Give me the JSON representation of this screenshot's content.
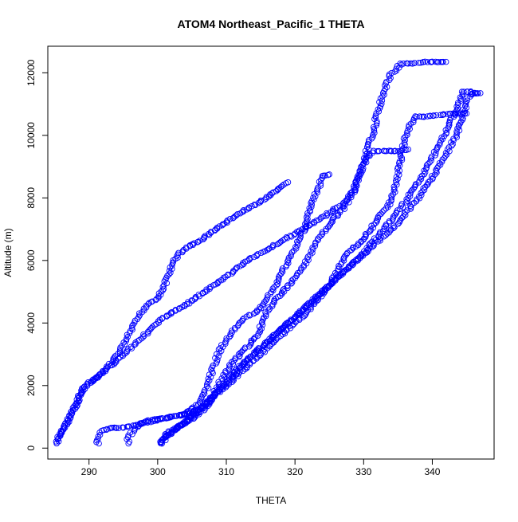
{
  "chart_data": {
    "type": "scatter",
    "title": "ATOM4 Northeast_Pacific_1 THETA",
    "xlabel": "THETA",
    "ylabel": "Altitude (m)",
    "xlim": [
      284.0,
      349.0
    ],
    "ylim": [
      -350,
      12850
    ],
    "xticks": [
      290,
      300,
      310,
      320,
      330,
      340
    ],
    "yticks": [
      0,
      2000,
      4000,
      6000,
      8000,
      10000,
      12000
    ],
    "grid": false,
    "legend": "none",
    "marker": "open-circle",
    "point_color": "#0000ff",
    "axis_color": "#000000",
    "series": [
      {
        "profile": [
          [
            285.3,
            150
          ],
          [
            285.6,
            350
          ],
          [
            286.2,
            600
          ],
          [
            287.3,
            1000
          ],
          [
            288.3,
            1500
          ],
          [
            289.0,
            1900
          ],
          [
            290.5,
            2150
          ],
          [
            292.0,
            2400
          ],
          [
            293.5,
            2800
          ],
          [
            294.5,
            3100
          ],
          [
            295.5,
            3500
          ],
          [
            296.5,
            3900
          ],
          [
            297.5,
            4300
          ],
          [
            298.5,
            4600
          ],
          [
            300.0,
            4800
          ],
          [
            300.8,
            5100
          ],
          [
            301.5,
            5500
          ],
          [
            302.2,
            5900
          ],
          [
            303.0,
            6200
          ],
          [
            304.5,
            6450
          ],
          [
            306.0,
            6600
          ],
          [
            307.5,
            6850
          ],
          [
            309.5,
            7150
          ],
          [
            311.5,
            7450
          ],
          [
            313.5,
            7700
          ],
          [
            315.5,
            7950
          ],
          [
            317.5,
            8250
          ],
          [
            319.0,
            8500
          ]
        ]
      },
      {
        "profile": [
          [
            285.3,
            150
          ],
          [
            285.7,
            400
          ],
          [
            286.5,
            700
          ],
          [
            287.5,
            1100
          ],
          [
            288.8,
            1700
          ],
          [
            290.0,
            2100
          ],
          [
            291.5,
            2300
          ],
          [
            293.0,
            2600
          ],
          [
            294.5,
            2900
          ],
          [
            296.0,
            3200
          ],
          [
            297.5,
            3500
          ],
          [
            299.0,
            3800
          ],
          [
            300.5,
            4100
          ],
          [
            301.8,
            4300
          ],
          [
            303.5,
            4500
          ],
          [
            305.5,
            4800
          ],
          [
            307.5,
            5100
          ],
          [
            309.5,
            5400
          ],
          [
            311.5,
            5750
          ],
          [
            313.5,
            6050
          ],
          [
            315.5,
            6300
          ],
          [
            317.5,
            6550
          ],
          [
            319.5,
            6800
          ],
          [
            321.5,
            7050
          ],
          [
            323.5,
            7300
          ],
          [
            325.5,
            7600
          ],
          [
            327.0,
            7800
          ],
          [
            328.5,
            8200
          ],
          [
            329.5,
            8800
          ],
          [
            330.5,
            9500
          ],
          [
            331.5,
            10200
          ],
          [
            332.0,
            10700
          ],
          [
            332.8,
            11300
          ],
          [
            333.8,
            11900
          ],
          [
            335.5,
            12300
          ],
          [
            337.0,
            12300
          ],
          [
            339.0,
            12350
          ],
          [
            341.0,
            12350
          ],
          [
            342.0,
            12350
          ]
        ]
      },
      {
        "profile": [
          [
            291.2,
            150
          ],
          [
            291.4,
            300
          ],
          [
            291.8,
            550
          ],
          [
            293.0,
            650
          ],
          [
            294.5,
            650
          ],
          [
            296.0,
            700
          ],
          [
            298.0,
            800
          ],
          [
            300.0,
            900
          ],
          [
            302.0,
            1000
          ],
          [
            304.0,
            1100
          ],
          [
            306.0,
            1400
          ],
          [
            307.0,
            1800
          ],
          [
            307.8,
            2400
          ],
          [
            308.8,
            3000
          ],
          [
            309.5,
            3300
          ],
          [
            310.5,
            3600
          ],
          [
            311.5,
            3900
          ],
          [
            313.0,
            4200
          ],
          [
            314.5,
            4400
          ],
          [
            315.5,
            4600
          ],
          [
            316.5,
            5000
          ],
          [
            317.5,
            5300
          ],
          [
            318.5,
            5800
          ],
          [
            319.5,
            6200
          ],
          [
            320.5,
            6600
          ],
          [
            321.3,
            7000
          ],
          [
            322.0,
            7500
          ],
          [
            322.8,
            8000
          ],
          [
            323.5,
            8400
          ],
          [
            324.0,
            8700
          ],
          [
            325.0,
            8750
          ]
        ]
      },
      {
        "profile": [
          [
            295.6,
            150
          ],
          [
            295.8,
            350
          ],
          [
            296.5,
            600
          ],
          [
            297.5,
            800
          ],
          [
            299.0,
            900
          ],
          [
            300.5,
            950
          ],
          [
            302.0,
            1000
          ],
          [
            303.5,
            1050
          ],
          [
            305.0,
            1150
          ],
          [
            306.5,
            1300
          ],
          [
            307.8,
            1600
          ],
          [
            308.8,
            2000
          ],
          [
            309.8,
            2400
          ],
          [
            310.8,
            2700
          ],
          [
            312.0,
            3000
          ],
          [
            313.3,
            3300
          ],
          [
            314.5,
            3600
          ],
          [
            315.3,
            4000
          ],
          [
            316.0,
            4400
          ],
          [
            317.0,
            4700
          ],
          [
            318.2,
            5000
          ],
          [
            319.5,
            5300
          ],
          [
            320.5,
            5600
          ],
          [
            321.5,
            5900
          ],
          [
            322.5,
            6300
          ],
          [
            323.5,
            6700
          ],
          [
            324.5,
            7000
          ],
          [
            325.5,
            7300
          ],
          [
            326.5,
            7500
          ],
          [
            327.5,
            7800
          ],
          [
            328.5,
            8200
          ],
          [
            329.2,
            8600
          ],
          [
            329.8,
            9000
          ],
          [
            330.5,
            9300
          ],
          [
            331.5,
            9500
          ],
          [
            333.0,
            9500
          ],
          [
            335.0,
            9500
          ],
          [
            336.5,
            9550
          ]
        ]
      },
      {
        "profile": [
          [
            300.5,
            150
          ],
          [
            300.8,
            300
          ],
          [
            301.5,
            500
          ],
          [
            302.5,
            650
          ],
          [
            304.0,
            800
          ],
          [
            305.5,
            1000
          ],
          [
            307.0,
            1300
          ],
          [
            308.5,
            1700
          ],
          [
            310.0,
            2000
          ],
          [
            311.5,
            2300
          ],
          [
            313.0,
            2600
          ],
          [
            314.5,
            2900
          ],
          [
            316.0,
            3200
          ],
          [
            317.5,
            3500
          ],
          [
            319.0,
            3800
          ],
          [
            320.5,
            4100
          ],
          [
            322.0,
            4400
          ],
          [
            323.5,
            4800
          ],
          [
            325.0,
            5200
          ],
          [
            326.0,
            5600
          ],
          [
            327.0,
            6000
          ],
          [
            328.0,
            6300
          ],
          [
            329.0,
            6500
          ],
          [
            330.0,
            6700
          ],
          [
            331.0,
            7000
          ],
          [
            332.0,
            7300
          ],
          [
            333.0,
            7600
          ],
          [
            334.0,
            7900
          ],
          [
            334.5,
            8300
          ],
          [
            335.0,
            8800
          ],
          [
            335.5,
            9400
          ],
          [
            336.0,
            9900
          ],
          [
            336.5,
            10200
          ],
          [
            337.5,
            10600
          ],
          [
            339.0,
            10600
          ],
          [
            341.0,
            10650
          ],
          [
            343.0,
            10700
          ],
          [
            345.0,
            10700
          ]
        ]
      },
      {
        "profile": [
          [
            300.6,
            150
          ],
          [
            301.0,
            300
          ],
          [
            302.0,
            500
          ],
          [
            303.5,
            750
          ],
          [
            305.0,
            1000
          ],
          [
            306.5,
            1300
          ],
          [
            308.0,
            1600
          ],
          [
            309.5,
            2000
          ],
          [
            311.0,
            2400
          ],
          [
            312.5,
            2700
          ],
          [
            314.0,
            3000
          ],
          [
            315.5,
            3300
          ],
          [
            317.0,
            3600
          ],
          [
            318.5,
            3900
          ],
          [
            320.0,
            4200
          ],
          [
            321.5,
            4500
          ],
          [
            323.0,
            4800
          ],
          [
            324.5,
            5100
          ],
          [
            326.0,
            5400
          ],
          [
            327.5,
            5700
          ],
          [
            329.0,
            6000
          ],
          [
            330.5,
            6300
          ],
          [
            332.0,
            6600
          ],
          [
            333.5,
            6900
          ],
          [
            335.0,
            7200
          ],
          [
            336.5,
            7600
          ],
          [
            338.0,
            8000
          ],
          [
            339.5,
            8500
          ],
          [
            341.0,
            9000
          ],
          [
            342.3,
            9500
          ],
          [
            343.5,
            10000
          ],
          [
            344.2,
            10500
          ],
          [
            345.0,
            11000
          ],
          [
            345.5,
            11300
          ],
          [
            346.5,
            11350
          ],
          [
            347.0,
            11350
          ]
        ]
      },
      {
        "profile": [
          [
            300.7,
            150
          ],
          [
            301.2,
            350
          ],
          [
            302.5,
            600
          ],
          [
            304.0,
            850
          ],
          [
            305.5,
            1100
          ],
          [
            307.0,
            1400
          ],
          [
            308.5,
            1800
          ],
          [
            310.0,
            2100
          ],
          [
            311.5,
            2400
          ],
          [
            313.0,
            2800
          ],
          [
            314.5,
            3100
          ],
          [
            316.0,
            3400
          ],
          [
            317.5,
            3700
          ],
          [
            319.0,
            4000
          ],
          [
            320.5,
            4300
          ],
          [
            322.0,
            4600
          ],
          [
            323.5,
            4900
          ],
          [
            325.0,
            5200
          ],
          [
            326.5,
            5500
          ],
          [
            328.0,
            5800
          ],
          [
            329.5,
            6100
          ],
          [
            331.0,
            6500
          ],
          [
            332.5,
            6900
          ],
          [
            334.0,
            7300
          ],
          [
            335.5,
            7700
          ],
          [
            337.0,
            8200
          ],
          [
            338.5,
            8700
          ],
          [
            339.8,
            9200
          ],
          [
            341.0,
            9700
          ],
          [
            342.0,
            10100
          ],
          [
            342.8,
            10500
          ],
          [
            343.5,
            10800
          ],
          [
            344.0,
            11100
          ],
          [
            344.5,
            11400
          ],
          [
            345.5,
            11400
          ],
          [
            346.2,
            11350
          ]
        ]
      }
    ]
  }
}
